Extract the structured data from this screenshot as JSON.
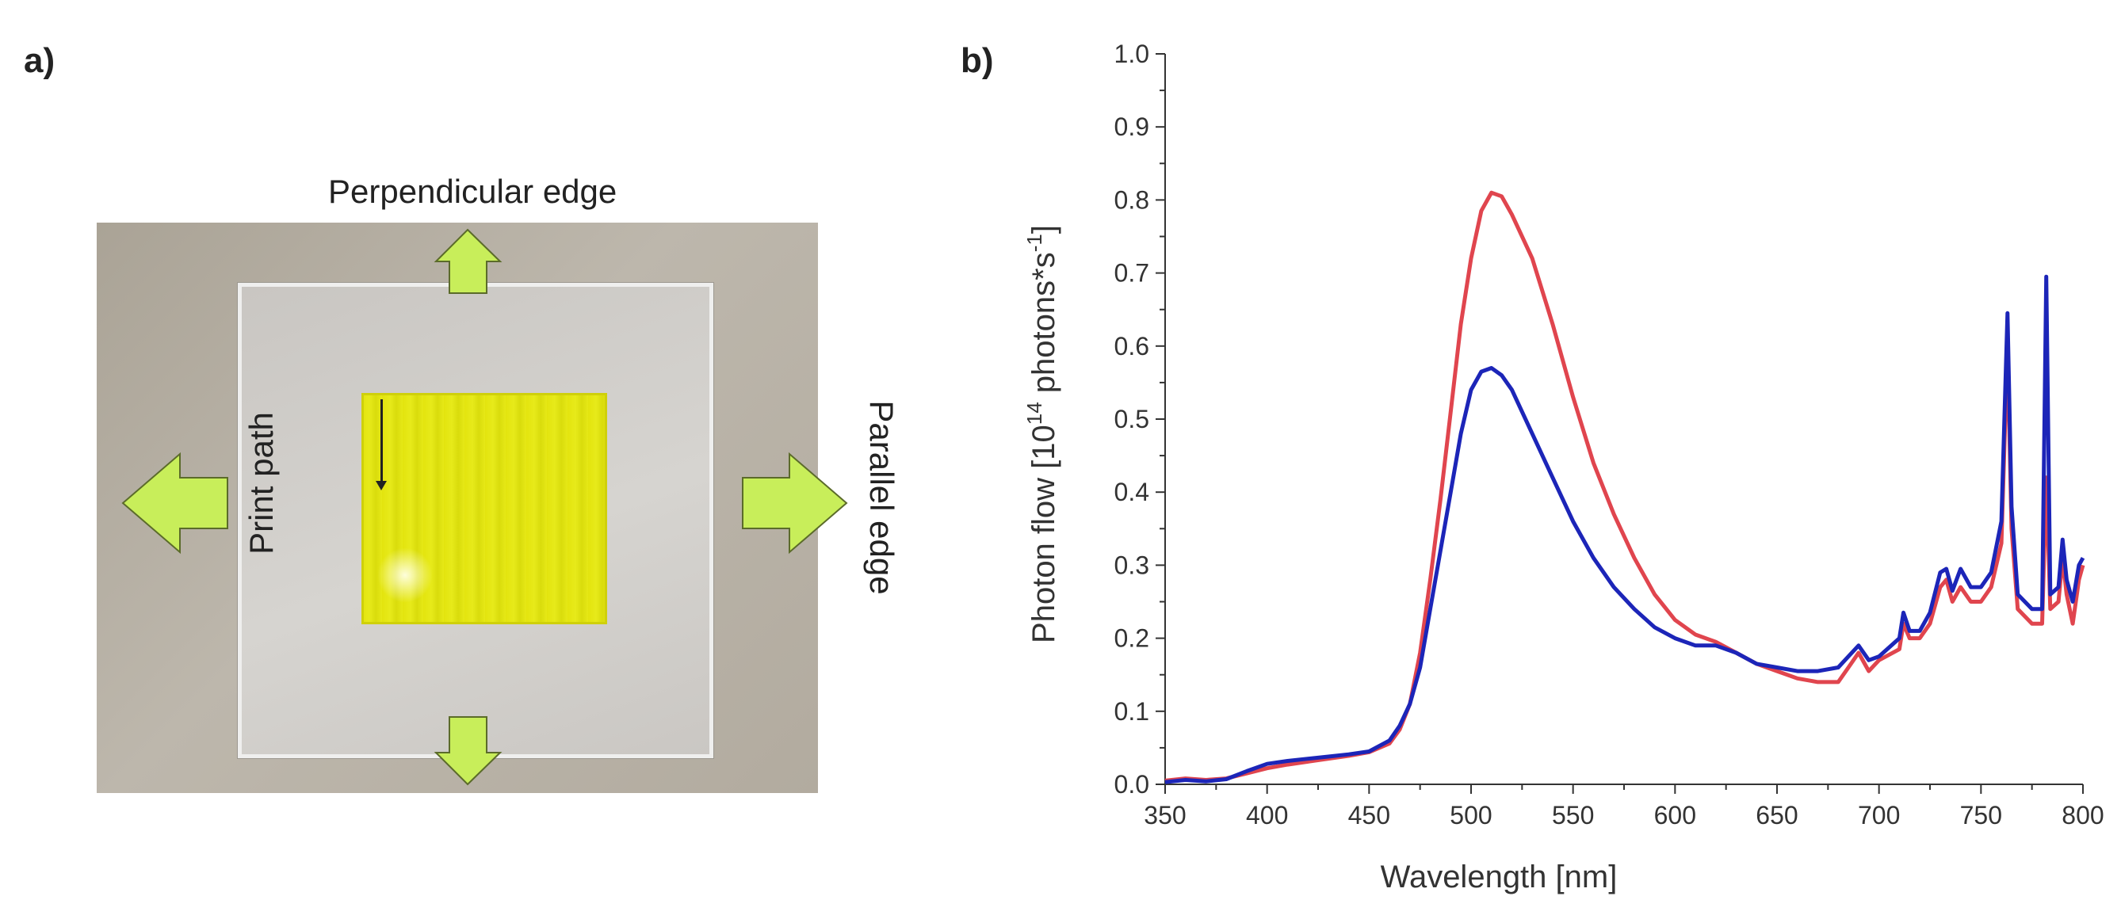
{
  "panels": {
    "a": {
      "label": "a)",
      "labels": {
        "perpendicular": "Perpendicular edge",
        "parallel": "Parallel edge",
        "print_path": "Print path"
      },
      "colors": {
        "arrow_fill": "#c8ee5a",
        "arrow_stroke": "#5b6b2a",
        "film": "#e3e40e"
      }
    },
    "b": {
      "label": "b)"
    }
  },
  "chart_data": {
    "type": "line",
    "xlabel": "Wavelength [nm]",
    "ylabel_main": "Photon flow [10",
    "ylabel_sup1": "14",
    "ylabel_mid": " photons*s",
    "ylabel_sup2": "-1",
    "ylabel_end": "]",
    "xlim": [
      350,
      800
    ],
    "ylim": [
      0.0,
      1.0
    ],
    "x_ticks": [
      "350",
      "400",
      "450",
      "500",
      "550",
      "600",
      "650",
      "700",
      "750",
      "800"
    ],
    "y_ticks": [
      "0.0",
      "0.1",
      "0.2",
      "0.3",
      "0.4",
      "0.5",
      "0.6",
      "0.7",
      "0.8",
      "0.9",
      "1.0"
    ],
    "grid": false,
    "series": [
      {
        "color": "#e0454e",
        "points": [
          [
            350,
            0.005
          ],
          [
            360,
            0.008
          ],
          [
            370,
            0.006
          ],
          [
            380,
            0.008
          ],
          [
            390,
            0.015
          ],
          [
            400,
            0.022
          ],
          [
            410,
            0.027
          ],
          [
            420,
            0.031
          ],
          [
            430,
            0.035
          ],
          [
            440,
            0.039
          ],
          [
            450,
            0.044
          ],
          [
            460,
            0.056
          ],
          [
            465,
            0.075
          ],
          [
            470,
            0.11
          ],
          [
            475,
            0.18
          ],
          [
            480,
            0.28
          ],
          [
            485,
            0.39
          ],
          [
            490,
            0.51
          ],
          [
            495,
            0.63
          ],
          [
            500,
            0.72
          ],
          [
            505,
            0.785
          ],
          [
            510,
            0.81
          ],
          [
            515,
            0.805
          ],
          [
            520,
            0.78
          ],
          [
            530,
            0.72
          ],
          [
            540,
            0.63
          ],
          [
            550,
            0.53
          ],
          [
            560,
            0.44
          ],
          [
            570,
            0.37
          ],
          [
            580,
            0.31
          ],
          [
            590,
            0.26
          ],
          [
            600,
            0.225
          ],
          [
            610,
            0.205
          ],
          [
            620,
            0.195
          ],
          [
            630,
            0.18
          ],
          [
            640,
            0.165
          ],
          [
            650,
            0.155
          ],
          [
            660,
            0.145
          ],
          [
            670,
            0.14
          ],
          [
            680,
            0.14
          ],
          [
            685,
            0.16
          ],
          [
            690,
            0.18
          ],
          [
            695,
            0.155
          ],
          [
            700,
            0.17
          ],
          [
            710,
            0.185
          ],
          [
            712,
            0.22
          ],
          [
            715,
            0.2
          ],
          [
            720,
            0.2
          ],
          [
            725,
            0.22
          ],
          [
            730,
            0.27
          ],
          [
            733,
            0.28
          ],
          [
            736,
            0.25
          ],
          [
            740,
            0.27
          ],
          [
            745,
            0.25
          ],
          [
            750,
            0.25
          ],
          [
            755,
            0.27
          ],
          [
            760,
            0.33
          ],
          [
            763,
            0.6
          ],
          [
            765,
            0.35
          ],
          [
            768,
            0.24
          ],
          [
            775,
            0.22
          ],
          [
            780,
            0.22
          ],
          [
            782,
            0.42
          ],
          [
            784,
            0.24
          ],
          [
            788,
            0.25
          ],
          [
            790,
            0.31
          ],
          [
            792,
            0.26
          ],
          [
            795,
            0.22
          ],
          [
            798,
            0.28
          ],
          [
            800,
            0.3
          ]
        ]
      },
      {
        "color": "#1c25b8",
        "points": [
          [
            350,
            0.003
          ],
          [
            360,
            0.006
          ],
          [
            370,
            0.004
          ],
          [
            380,
            0.007
          ],
          [
            390,
            0.018
          ],
          [
            400,
            0.028
          ],
          [
            410,
            0.032
          ],
          [
            420,
            0.035
          ],
          [
            430,
            0.038
          ],
          [
            440,
            0.041
          ],
          [
            450,
            0.045
          ],
          [
            460,
            0.06
          ],
          [
            465,
            0.08
          ],
          [
            470,
            0.11
          ],
          [
            475,
            0.16
          ],
          [
            480,
            0.24
          ],
          [
            485,
            0.32
          ],
          [
            490,
            0.4
          ],
          [
            495,
            0.48
          ],
          [
            500,
            0.54
          ],
          [
            505,
            0.565
          ],
          [
            510,
            0.57
          ],
          [
            515,
            0.56
          ],
          [
            520,
            0.54
          ],
          [
            530,
            0.48
          ],
          [
            540,
            0.42
          ],
          [
            550,
            0.36
          ],
          [
            560,
            0.31
          ],
          [
            570,
            0.27
          ],
          [
            580,
            0.24
          ],
          [
            590,
            0.215
          ],
          [
            600,
            0.2
          ],
          [
            610,
            0.19
          ],
          [
            620,
            0.19
          ],
          [
            630,
            0.18
          ],
          [
            640,
            0.165
          ],
          [
            650,
            0.16
          ],
          [
            660,
            0.155
          ],
          [
            670,
            0.155
          ],
          [
            680,
            0.16
          ],
          [
            685,
            0.175
          ],
          [
            690,
            0.19
          ],
          [
            695,
            0.17
          ],
          [
            700,
            0.175
          ],
          [
            710,
            0.2
          ],
          [
            712,
            0.235
          ],
          [
            715,
            0.21
          ],
          [
            720,
            0.21
          ],
          [
            725,
            0.235
          ],
          [
            730,
            0.29
          ],
          [
            733,
            0.295
          ],
          [
            736,
            0.265
          ],
          [
            740,
            0.295
          ],
          [
            745,
            0.27
          ],
          [
            750,
            0.27
          ],
          [
            755,
            0.29
          ],
          [
            760,
            0.36
          ],
          [
            763,
            0.645
          ],
          [
            765,
            0.38
          ],
          [
            768,
            0.26
          ],
          [
            775,
            0.24
          ],
          [
            780,
            0.24
          ],
          [
            782,
            0.695
          ],
          [
            784,
            0.26
          ],
          [
            788,
            0.27
          ],
          [
            790,
            0.335
          ],
          [
            792,
            0.28
          ],
          [
            795,
            0.25
          ],
          [
            798,
            0.3
          ],
          [
            800,
            0.31
          ]
        ]
      }
    ]
  }
}
